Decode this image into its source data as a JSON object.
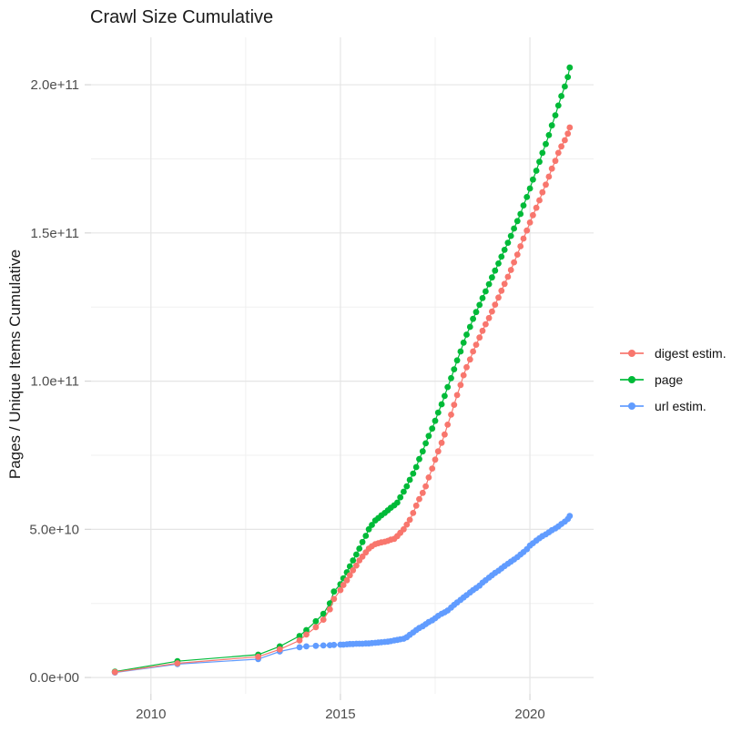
{
  "chart_data": {
    "type": "line",
    "title": "Crawl Size Cumulative",
    "xlabel": "",
    "ylabel": "Pages / Unique Items Cumulative",
    "x_domain": [
      2008.42,
      2021.68
    ],
    "y_domain": [
      -5500000000,
      216000000000
    ],
    "x_ticks": [
      {
        "value": 2010,
        "label": "2010"
      },
      {
        "value": 2015,
        "label": "2015"
      },
      {
        "value": 2020,
        "label": "2020"
      }
    ],
    "x_minor": [
      2012.5,
      2017.5
    ],
    "y_ticks": [
      {
        "value": 0,
        "label": "0.0e+00"
      },
      {
        "value": 50000000000,
        "label": "5.0e+10"
      },
      {
        "value": 100000000000,
        "label": "1.0e+11"
      },
      {
        "value": 150000000000,
        "label": "1.5e+11"
      },
      {
        "value": 200000000000,
        "label": "2.0e+11"
      }
    ],
    "y_minor": [
      25000000000,
      75000000000,
      125000000000,
      175000000000
    ],
    "grid": true,
    "legend_position": "right",
    "colors": {
      "grid_major": "#e5e5e5",
      "grid_minor": "#f0f0f0",
      "tick": "#d6d6d6",
      "tick_text": "#4d4d4d",
      "background": "#ffffff"
    },
    "point_radius": 3.4,
    "draw_order": [
      "page",
      "url estim.",
      "digest estim."
    ],
    "series": [
      {
        "name": "digest estim.",
        "color": "#F8766D",
        "points": [
          [
            2009.05,
            1800000000.0
          ],
          [
            2010.7,
            4800000000.0
          ],
          [
            2012.83,
            7000000000.0
          ],
          [
            2013.4,
            9500000000.0
          ],
          [
            2013.92,
            12500000000.0
          ],
          [
            2014.1,
            14500000000.0
          ],
          [
            2014.35,
            17000000000.0
          ],
          [
            2014.55,
            19500000000.0
          ],
          [
            2014.72,
            23000000000.0
          ],
          [
            2014.83,
            26500000000.0
          ],
          [
            2015.0,
            29500000000.0
          ],
          [
            2015.08,
            31200000000.0
          ],
          [
            2015.17,
            32800000000.0
          ],
          [
            2015.25,
            34500000000.0
          ],
          [
            2015.33,
            36200000000.0
          ],
          [
            2015.42,
            37800000000.0
          ],
          [
            2015.5,
            39500000000.0
          ],
          [
            2015.58,
            40800000000.0
          ],
          [
            2015.67,
            42200000000.0
          ],
          [
            2015.75,
            43500000000.0
          ],
          [
            2015.83,
            44300000000.0
          ],
          [
            2015.92,
            45000000000.0
          ],
          [
            2016.0,
            45300000000.0
          ],
          [
            2016.08,
            45600000000.0
          ],
          [
            2016.17,
            45800000000.0
          ],
          [
            2016.25,
            46100000000.0
          ],
          [
            2016.33,
            46500000000.0
          ],
          [
            2016.42,
            46800000000.0
          ],
          [
            2016.5,
            47700000000.0
          ],
          [
            2016.58,
            48800000000.0
          ],
          [
            2016.67,
            50000000000.0
          ],
          [
            2016.75,
            51600000000.0
          ],
          [
            2016.83,
            53200000000.0
          ],
          [
            2016.92,
            55500000000.0
          ],
          [
            2017.0,
            58000000000.0
          ],
          [
            2017.08,
            60200000000.0
          ],
          [
            2017.17,
            62300000000.0
          ],
          [
            2017.25,
            64500000000.0
          ],
          [
            2017.33,
            67500000000.0
          ],
          [
            2017.42,
            70500000000.0
          ],
          [
            2017.5,
            73500000000.0
          ],
          [
            2017.58,
            76300000000.0
          ],
          [
            2017.67,
            79200000000.0
          ],
          [
            2017.75,
            82000000000.0
          ],
          [
            2017.83,
            85300000000.0
          ],
          [
            2017.92,
            88700000000.0
          ],
          [
            2018.0,
            92000000000.0
          ],
          [
            2018.08,
            95300000000.0
          ],
          [
            2018.17,
            98700000000.0
          ],
          [
            2018.25,
            102000000000.0
          ],
          [
            2018.33,
            104700000000.0
          ],
          [
            2018.42,
            107300000000.0
          ],
          [
            2018.5,
            110000000000.0
          ],
          [
            2018.58,
            112300000000.0
          ],
          [
            2018.67,
            114700000000.0
          ],
          [
            2018.75,
            117000000000.0
          ],
          [
            2018.83,
            119200000000.0
          ],
          [
            2018.92,
            121300000000.0
          ],
          [
            2019.0,
            123500000000.0
          ],
          [
            2019.08,
            125800000000.0
          ],
          [
            2019.17,
            128200000000.0
          ],
          [
            2019.25,
            130500000000.0
          ],
          [
            2019.33,
            132800000000.0
          ],
          [
            2019.42,
            135200000000.0
          ],
          [
            2019.5,
            137500000000.0
          ],
          [
            2019.58,
            140100000000.0
          ],
          [
            2019.67,
            142700000000.0
          ],
          [
            2019.75,
            145500000000.0
          ],
          [
            2019.83,
            148100000000.0
          ],
          [
            2019.92,
            150800000000.0
          ],
          [
            2020.0,
            153500000000.0
          ],
          [
            2020.08,
            156000000000.0
          ],
          [
            2020.17,
            158500000000.0
          ],
          [
            2020.25,
            161000000000.0
          ],
          [
            2020.33,
            163700000000.0
          ],
          [
            2020.42,
            166300000000.0
          ],
          [
            2020.5,
            169000000000.0
          ],
          [
            2020.58,
            171700000000.0
          ],
          [
            2020.67,
            174300000000.0
          ],
          [
            2020.75,
            177000000000.0
          ],
          [
            2020.83,
            179200000000.0
          ],
          [
            2020.92,
            181300000000.0
          ],
          [
            2021.0,
            183500000000.0
          ],
          [
            2021.05,
            185600000000.0
          ]
        ]
      },
      {
        "name": "page",
        "color": "#00BA38",
        "points": [
          [
            2009.05,
            2000000000.0
          ],
          [
            2010.7,
            5500000000.0
          ],
          [
            2012.83,
            7700000000.0
          ],
          [
            2013.4,
            10500000000.0
          ],
          [
            2013.92,
            14000000000.0
          ],
          [
            2014.1,
            16000000000.0
          ],
          [
            2014.35,
            19000000000.0
          ],
          [
            2014.55,
            21500000000.0
          ],
          [
            2014.72,
            25000000000.0
          ],
          [
            2014.83,
            29000000000.0
          ],
          [
            2015.0,
            31500000000.0
          ],
          [
            2015.08,
            33500000000.0
          ],
          [
            2015.17,
            35500000000.0
          ],
          [
            2015.25,
            37500000000.0
          ],
          [
            2015.33,
            39500000000.0
          ],
          [
            2015.42,
            41500000000.0
          ],
          [
            2015.5,
            43500000000.0
          ],
          [
            2015.58,
            45700000000.0
          ],
          [
            2015.67,
            47800000000.0
          ],
          [
            2015.75,
            50000000000.0
          ],
          [
            2015.83,
            51500000000.0
          ],
          [
            2015.92,
            53000000000.0
          ],
          [
            2016.0,
            53800000000.0
          ],
          [
            2016.08,
            54700000000.0
          ],
          [
            2016.17,
            55500000000.0
          ],
          [
            2016.25,
            56400000000.0
          ],
          [
            2016.33,
            57300000000.0
          ],
          [
            2016.42,
            58100000000.0
          ],
          [
            2016.5,
            59000000000.0
          ],
          [
            2016.58,
            60800000000.0
          ],
          [
            2016.67,
            62700000000.0
          ],
          [
            2016.75,
            64500000000.0
          ],
          [
            2016.83,
            66700000000.0
          ],
          [
            2016.92,
            68800000000.0
          ],
          [
            2017.0,
            71000000000.0
          ],
          [
            2017.08,
            73700000000.0
          ],
          [
            2017.17,
            76300000000.0
          ],
          [
            2017.25,
            79000000000.0
          ],
          [
            2017.33,
            81500000000.0
          ],
          [
            2017.42,
            84000000000.0
          ],
          [
            2017.5,
            86600000000.0
          ],
          [
            2017.58,
            89400000000.0
          ],
          [
            2017.67,
            92200000000.0
          ],
          [
            2017.75,
            95000000000.0
          ],
          [
            2017.83,
            98000000000.0
          ],
          [
            2017.92,
            101000000000.0
          ],
          [
            2018.0,
            104000000000.0
          ],
          [
            2018.08,
            107000000000.0
          ],
          [
            2018.17,
            110000000000.0
          ],
          [
            2018.25,
            113000000000.0
          ],
          [
            2018.33,
            115700000000.0
          ],
          [
            2018.42,
            118300000000.0
          ],
          [
            2018.5,
            121000000000.0
          ],
          [
            2018.58,
            123300000000.0
          ],
          [
            2018.67,
            125700000000.0
          ],
          [
            2018.75,
            128000000000.0
          ],
          [
            2018.83,
            130300000000.0
          ],
          [
            2018.92,
            132700000000.0
          ],
          [
            2019.0,
            135000000000.0
          ],
          [
            2019.08,
            137300000000.0
          ],
          [
            2019.17,
            139700000000.0
          ],
          [
            2019.25,
            142000000000.0
          ],
          [
            2019.33,
            144300000000.0
          ],
          [
            2019.42,
            146700000000.0
          ],
          [
            2019.5,
            149000000000.0
          ],
          [
            2019.58,
            151500000000.0
          ],
          [
            2019.67,
            154000000000.0
          ],
          [
            2019.75,
            156400000000.0
          ],
          [
            2019.83,
            159300000000.0
          ],
          [
            2019.92,
            162100000000.0
          ],
          [
            2020.0,
            165000000000.0
          ],
          [
            2020.08,
            168000000000.0
          ],
          [
            2020.17,
            171000000000.0
          ],
          [
            2020.25,
            174000000000.0
          ],
          [
            2020.33,
            177000000000.0
          ],
          [
            2020.42,
            180000000000.0
          ],
          [
            2020.5,
            183000000000.0
          ],
          [
            2020.58,
            186300000000.0
          ],
          [
            2020.67,
            189700000000.0
          ],
          [
            2020.75,
            193000000000.0
          ],
          [
            2020.83,
            196200000000.0
          ],
          [
            2020.92,
            199400000000.0
          ],
          [
            2021.0,
            202600000000.0
          ],
          [
            2021.05,
            205800000000.0
          ]
        ]
      },
      {
        "name": "url estim.",
        "color": "#619CFF",
        "points": [
          [
            2009.05,
            1700000000.0
          ],
          [
            2010.7,
            4500000000.0
          ],
          [
            2012.83,
            6200000000.0
          ],
          [
            2013.4,
            8800000000.0
          ],
          [
            2013.92,
            10200000000.0
          ],
          [
            2014.1,
            10500000000.0
          ],
          [
            2014.35,
            10700000000.0
          ],
          [
            2014.55,
            10800000000.0
          ],
          [
            2014.72,
            10900000000.0
          ],
          [
            2014.83,
            11000000000.0
          ],
          [
            2015.0,
            11100000000.0
          ],
          [
            2015.08,
            11100000000.0
          ],
          [
            2015.17,
            11200000000.0
          ],
          [
            2015.25,
            11300000000.0
          ],
          [
            2015.33,
            11300000000.0
          ],
          [
            2015.42,
            11400000000.0
          ],
          [
            2015.5,
            11400000000.0
          ],
          [
            2015.58,
            11400000000.0
          ],
          [
            2015.67,
            11500000000.0
          ],
          [
            2015.75,
            11500000000.0
          ],
          [
            2015.83,
            11600000000.0
          ],
          [
            2015.92,
            11700000000.0
          ],
          [
            2016.0,
            11800000000.0
          ],
          [
            2016.08,
            11900000000.0
          ],
          [
            2016.17,
            12000000000.0
          ],
          [
            2016.25,
            12100000000.0
          ],
          [
            2016.33,
            12300000000.0
          ],
          [
            2016.42,
            12500000000.0
          ],
          [
            2016.5,
            12700000000.0
          ],
          [
            2016.58,
            12900000000.0
          ],
          [
            2016.67,
            13100000000.0
          ],
          [
            2016.75,
            13600000000.0
          ],
          [
            2016.83,
            14400000000.0
          ],
          [
            2016.92,
            15200000000.0
          ],
          [
            2017.0,
            16000000000.0
          ],
          [
            2017.08,
            16700000000.0
          ],
          [
            2017.17,
            17300000000.0
          ],
          [
            2017.25,
            18000000000.0
          ],
          [
            2017.33,
            18700000000.0
          ],
          [
            2017.42,
            19300000000.0
          ],
          [
            2017.5,
            20000000000.0
          ],
          [
            2017.58,
            20800000000.0
          ],
          [
            2017.67,
            21500000000.0
          ],
          [
            2017.75,
            22000000000.0
          ],
          [
            2017.83,
            22600000000.0
          ],
          [
            2017.92,
            23600000000.0
          ],
          [
            2018.0,
            24500000000.0
          ],
          [
            2018.08,
            25300000000.0
          ],
          [
            2018.17,
            26200000000.0
          ],
          [
            2018.25,
            27000000000.0
          ],
          [
            2018.33,
            27800000000.0
          ],
          [
            2018.42,
            28700000000.0
          ],
          [
            2018.5,
            29500000000.0
          ],
          [
            2018.58,
            30200000000.0
          ],
          [
            2018.67,
            31000000000.0
          ],
          [
            2018.75,
            32000000000.0
          ],
          [
            2018.83,
            32800000000.0
          ],
          [
            2018.92,
            33700000000.0
          ],
          [
            2019.0,
            34500000000.0
          ],
          [
            2019.08,
            35300000000.0
          ],
          [
            2019.17,
            36000000000.0
          ],
          [
            2019.25,
            36800000000.0
          ],
          [
            2019.33,
            37600000000.0
          ],
          [
            2019.42,
            38400000000.0
          ],
          [
            2019.5,
            39100000000.0
          ],
          [
            2019.58,
            39800000000.0
          ],
          [
            2019.67,
            40600000000.0
          ],
          [
            2019.75,
            41500000000.0
          ],
          [
            2019.83,
            42300000000.0
          ],
          [
            2019.92,
            43300000000.0
          ],
          [
            2020.0,
            44500000000.0
          ],
          [
            2020.08,
            45300000000.0
          ],
          [
            2020.17,
            46200000000.0
          ],
          [
            2020.25,
            47000000000.0
          ],
          [
            2020.33,
            47700000000.0
          ],
          [
            2020.42,
            48300000000.0
          ],
          [
            2020.5,
            49000000000.0
          ],
          [
            2020.58,
            49700000000.0
          ],
          [
            2020.67,
            50300000000.0
          ],
          [
            2020.75,
            51000000000.0
          ],
          [
            2020.83,
            51800000000.0
          ],
          [
            2020.92,
            52600000000.0
          ],
          [
            2021.0,
            53500000000.0
          ],
          [
            2021.05,
            54500000000.0
          ]
        ]
      }
    ]
  }
}
